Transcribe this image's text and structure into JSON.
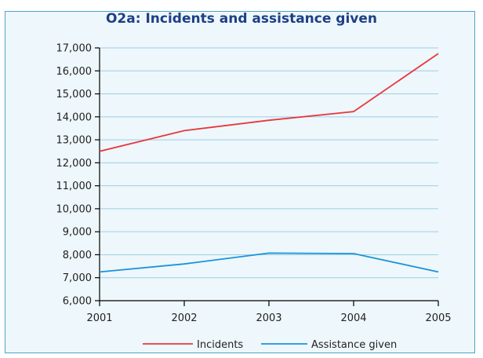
{
  "chart_data": {
    "type": "line",
    "title": "O2a: Incidents and assistance given",
    "xlabel": "",
    "ylabel": "",
    "x": [
      "2001",
      "2002",
      "2003",
      "2004",
      "2005"
    ],
    "ylim": [
      6000,
      17000
    ],
    "yticks": [
      6000,
      7000,
      8000,
      9000,
      10000,
      11000,
      12000,
      13000,
      14000,
      15000,
      16000,
      17000
    ],
    "ytick_labels": [
      "6,000",
      "7,000",
      "8,000",
      "9,000",
      "10,000",
      "11,000",
      "12,000",
      "13,000",
      "14,000",
      "15,000",
      "16,000",
      "17,000"
    ],
    "grid": true,
    "legend_position": "bottom",
    "series": [
      {
        "name": "Incidents",
        "color": "#e8383d",
        "values": [
          12500,
          13400,
          13850,
          14230,
          16750
        ]
      },
      {
        "name": "Assistance given",
        "color": "#1a94d8",
        "values": [
          7250,
          7600,
          8070,
          8050,
          7250
        ]
      }
    ]
  },
  "colors": {
    "background": "#eef7fb",
    "border": "#4fa3c7",
    "title": "#1e3f86",
    "gridline": "#9ccfe8"
  }
}
